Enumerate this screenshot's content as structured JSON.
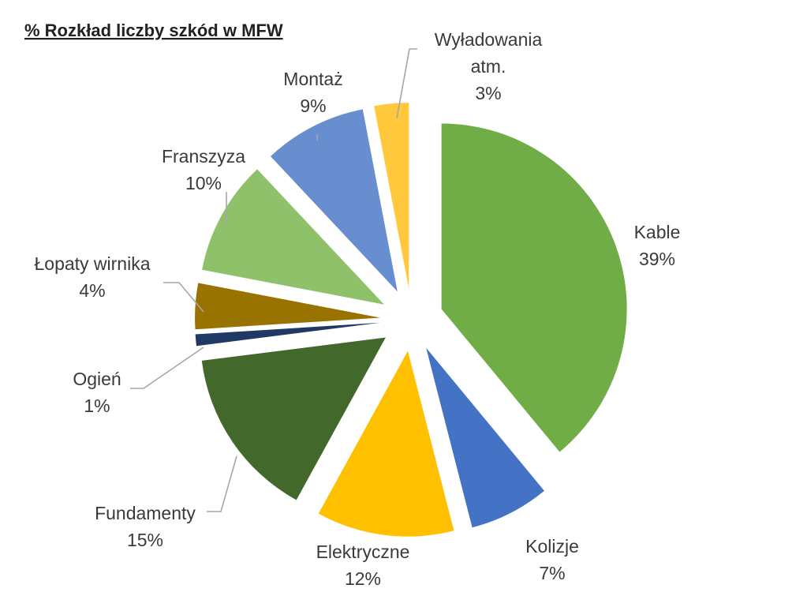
{
  "chart_data": {
    "type": "pie",
    "title": "% Rozkład liczby szkód w MFW",
    "slices": [
      {
        "name": "Kable",
        "value": 39,
        "value_label": "39%",
        "color": "#70AD47"
      },
      {
        "name": "Kolizje",
        "value": 7,
        "value_label": "7%",
        "color": "#4472C4"
      },
      {
        "name": "Elektryczne",
        "value": 12,
        "value_label": "12%",
        "color": "#FFC000"
      },
      {
        "name": "Fundamenty",
        "value": 15,
        "value_label": "15%",
        "color": "#43682B"
      },
      {
        "name": "Ogień",
        "value": 1,
        "value_label": "1%",
        "color": "#203864"
      },
      {
        "name": "Łopaty wirnika",
        "value": 4,
        "value_label": "4%",
        "color": "#997300"
      },
      {
        "name": "Franszyza",
        "value": 10,
        "value_label": "10%",
        "color": "#8FC16B"
      },
      {
        "name": "Montaż",
        "value": 9,
        "value_label": "9%",
        "color": "#698ED0"
      },
      {
        "name": "Wyładowania atm.",
        "name_lines": [
          "Wyładowania",
          "atm."
        ],
        "value": 3,
        "value_label": "3%",
        "color": "#FFC83D"
      }
    ],
    "legend": "none",
    "labels": "outside with leader lines"
  }
}
